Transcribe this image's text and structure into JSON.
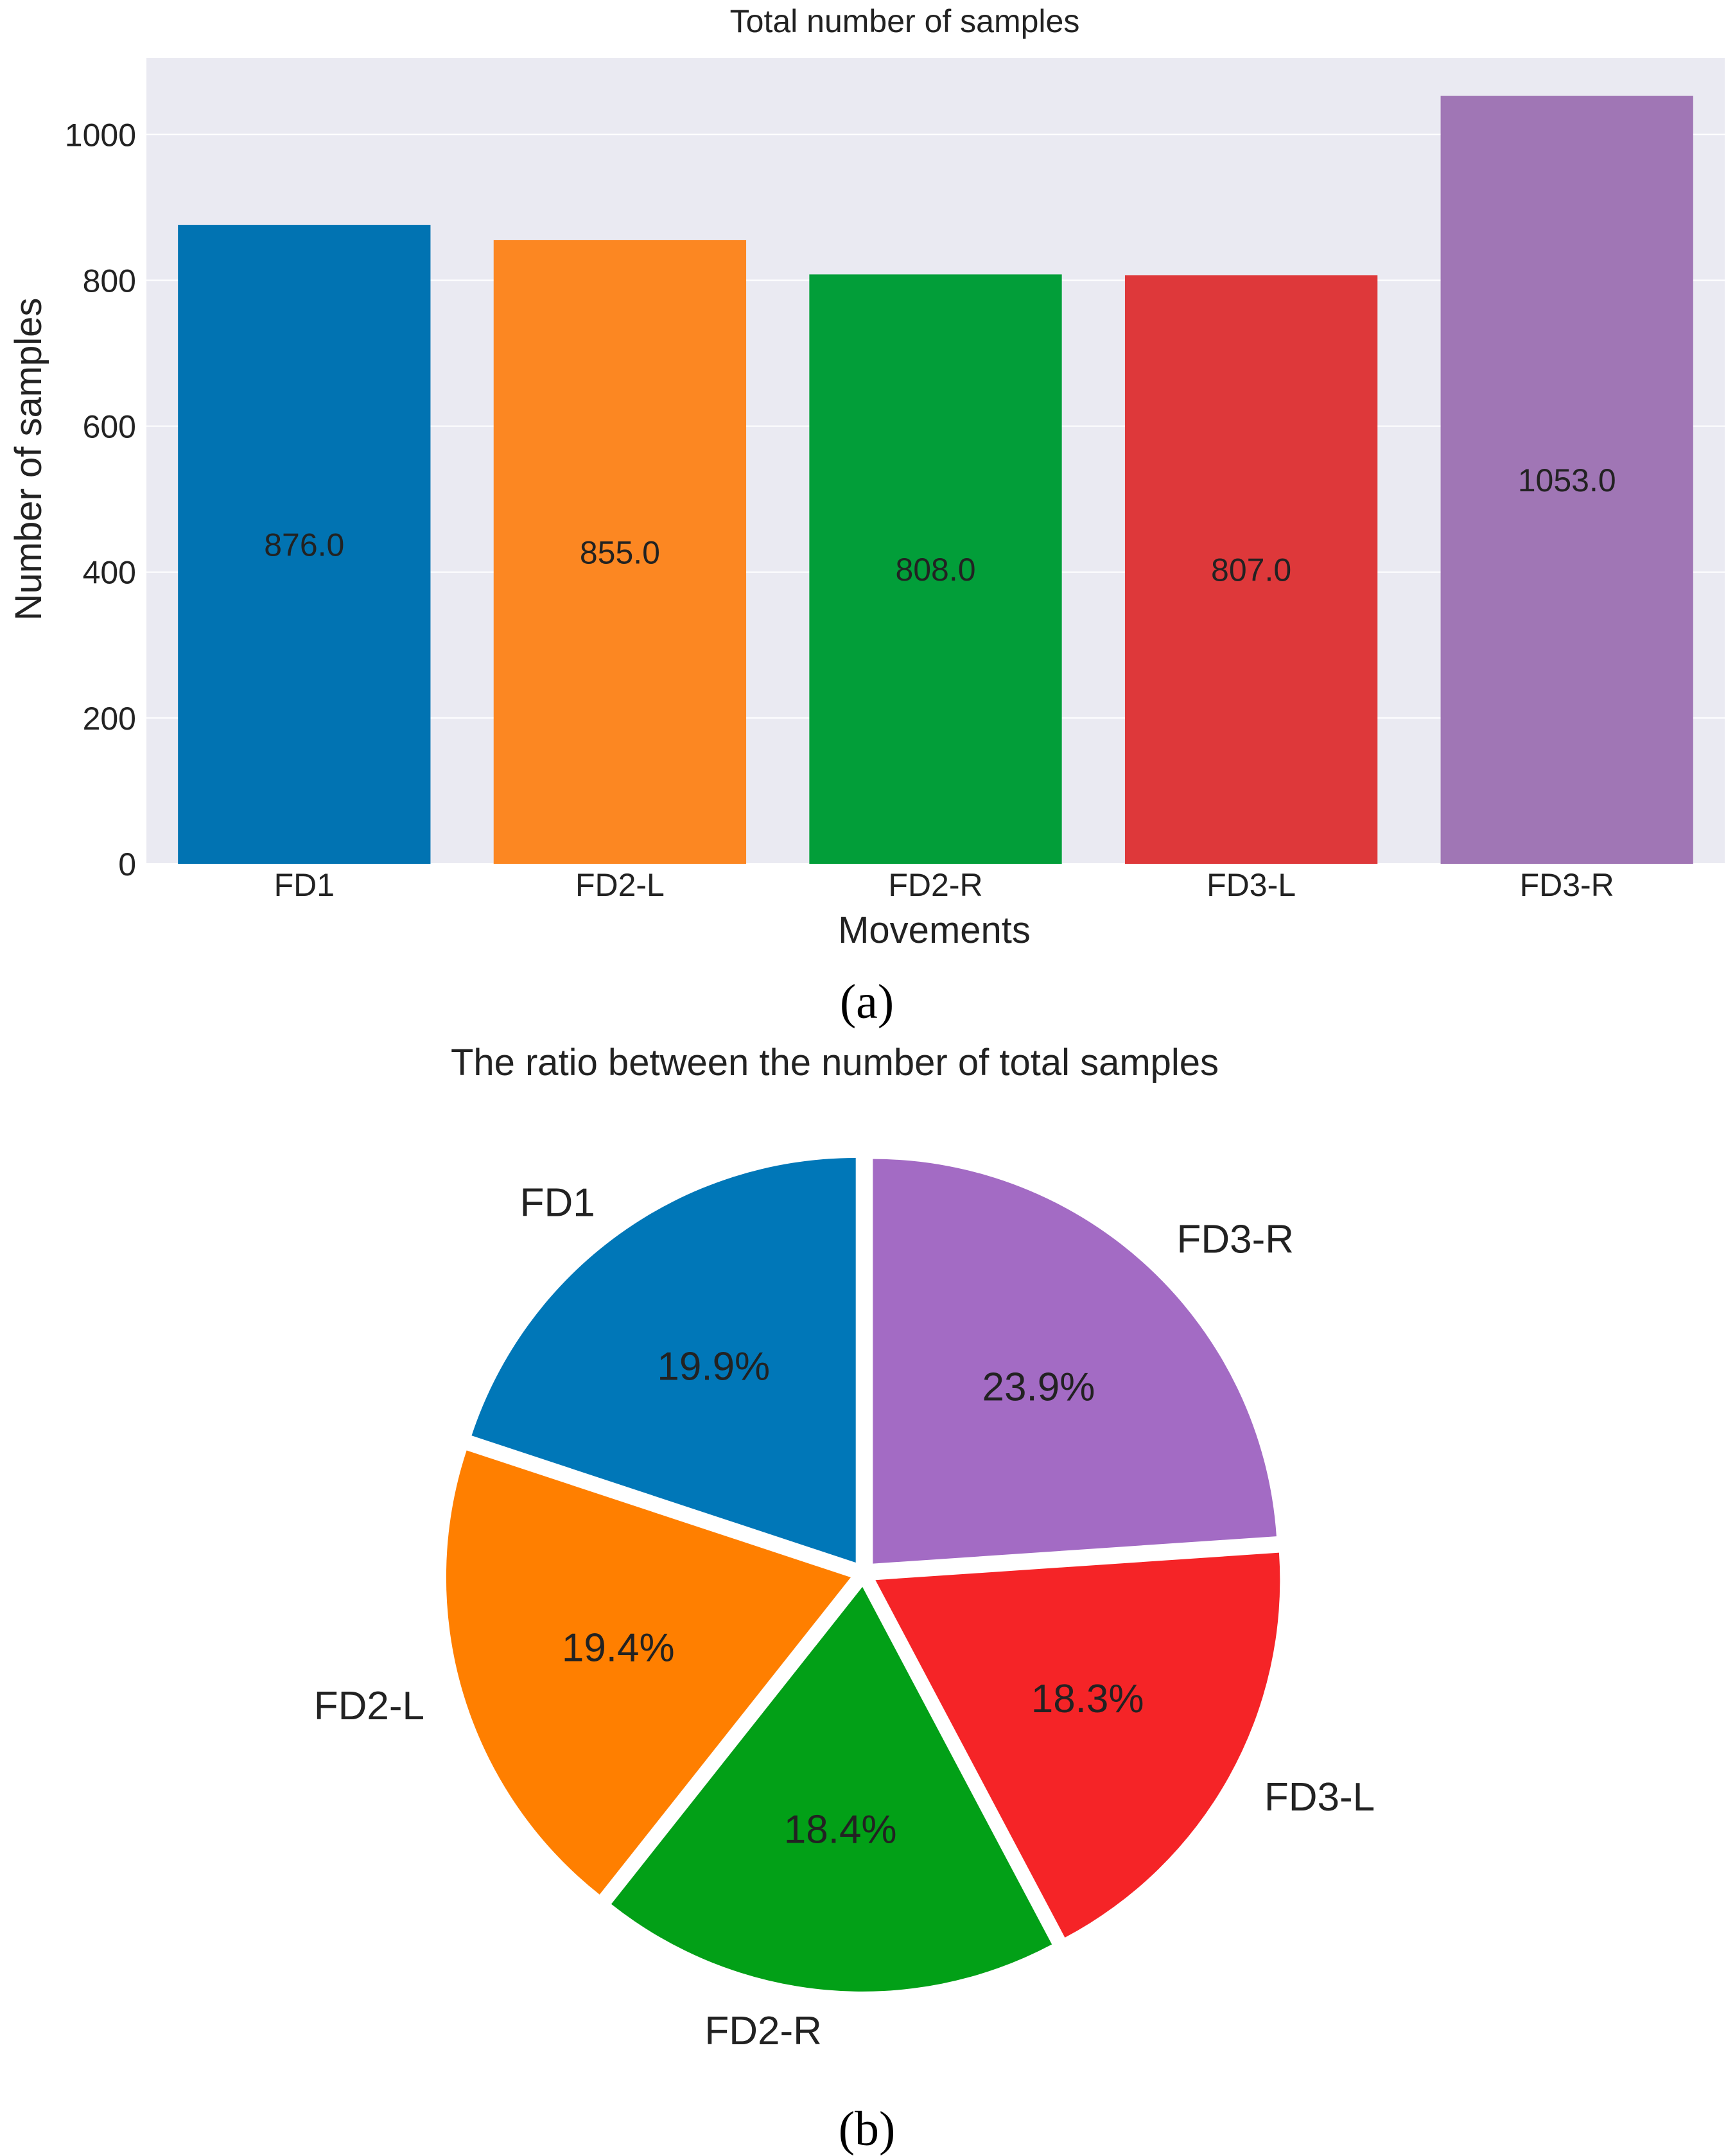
{
  "chart_data": [
    {
      "type": "bar",
      "title": "Total number of samples",
      "xlabel": "Movements",
      "ylabel": "Number of samples",
      "categories": [
        "FD1",
        "FD2-L",
        "FD2-R",
        "FD3-L",
        "FD3-R"
      ],
      "values": [
        876.0,
        855.0,
        808.0,
        807.0,
        1053.0
      ],
      "value_labels": [
        "876.0",
        "855.0",
        "808.0",
        "807.0",
        "1053.0"
      ],
      "colors": [
        "#0173b2",
        "#fc8722",
        "#029e39",
        "#de383a",
        "#a076b5"
      ],
      "yticks": [
        0,
        200,
        400,
        600,
        800,
        1000
      ],
      "ylim": [
        0,
        1105
      ],
      "grid": true,
      "panel_label": "(a)"
    },
    {
      "type": "pie",
      "title": "The ratio between the number of total samples",
      "labels": [
        "FD1",
        "FD2-L",
        "FD2-R",
        "FD3-L",
        "FD3-R"
      ],
      "values": [
        19.9,
        19.4,
        18.4,
        18.3,
        23.9
      ],
      "pct_labels": [
        "19.9%",
        "19.4%",
        "18.4%",
        "18.3%",
        "23.9%"
      ],
      "colors": [
        "#0077b8",
        "#ff7f00",
        "#02a017",
        "#f52427",
        "#a36bc4"
      ],
      "start_angle_deg": 90,
      "direction": "counterclockwise",
      "exploded": true,
      "panel_label": "(b)"
    }
  ]
}
